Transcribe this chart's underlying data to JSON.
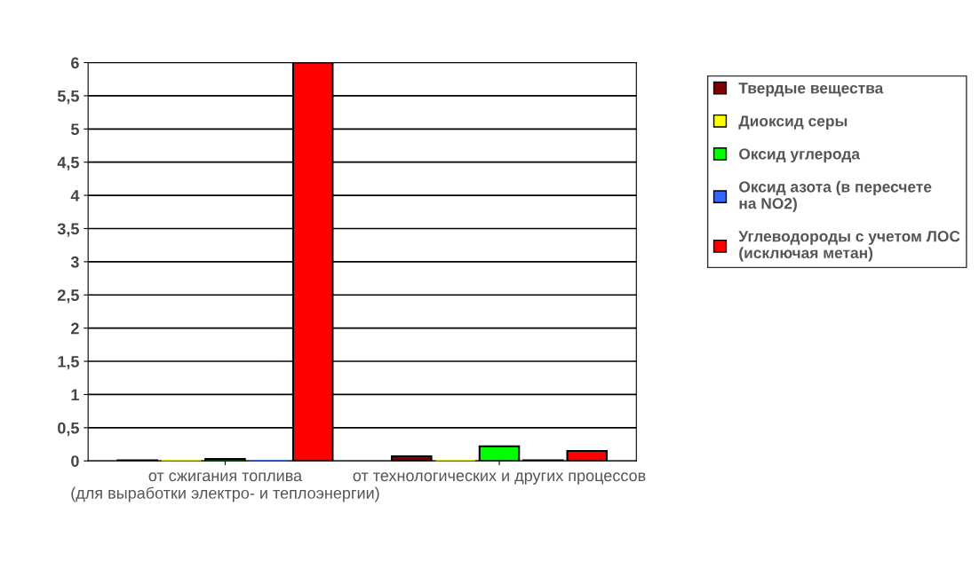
{
  "chart_data": {
    "type": "bar",
    "categories": [
      "от сжигания топлива (для выработки электро- и теплоэнергии)",
      "от технологических и других процессов"
    ],
    "series": [
      {
        "name": "Твердые вещества",
        "color": "#800000",
        "values": [
          0.01,
          0.07
        ]
      },
      {
        "name": "Диоксид серы",
        "color": "#ffff00",
        "values": [
          0,
          0
        ]
      },
      {
        "name": "Оксид углерода",
        "color": "#00ff00",
        "values": [
          0.03,
          0.22
        ]
      },
      {
        "name": "Оксид азота (в пересчете на NO2)",
        "color": "#3366ff",
        "values": [
          0,
          0.01
        ]
      },
      {
        "name": "Углеводороды с учетом ЛОС (исключая метан)",
        "color": "#ff0000",
        "values": [
          6.0,
          0.15
        ]
      }
    ],
    "ylim": [
      0,
      6
    ],
    "yticks": [
      0,
      {
        "value": 0.5,
        "label": "0,5"
      },
      1,
      {
        "value": 1.5,
        "label": "1,5"
      },
      2,
      {
        "value": 2.5,
        "label": "2,5"
      },
      3,
      {
        "value": 3.5,
        "label": "3,5"
      },
      4,
      {
        "value": 4.5,
        "label": "4,5"
      },
      5,
      {
        "value": 5.5,
        "label": "5,5"
      },
      6
    ],
    "grid": "y",
    "legend": "right"
  }
}
